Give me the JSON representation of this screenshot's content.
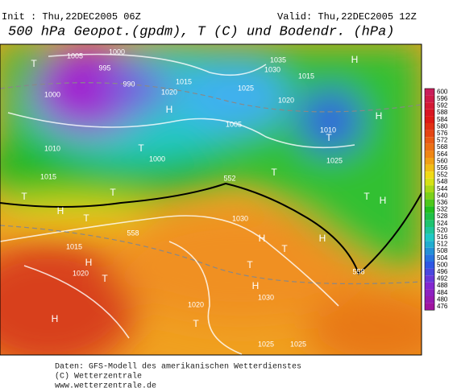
{
  "header": {
    "init": "Init : Thu,22DEC2005 06Z",
    "valid": "Valid: Thu,22DEC2005 12Z",
    "title": "500 hPa Geopot.(gpdm), T (C) und Bodendr. (hPa)"
  },
  "map_labels": [
    "T",
    "1005",
    "1000",
    "995",
    "990",
    "1000",
    "H",
    "1015",
    "1020",
    "1035",
    "1030",
    "1025",
    "1020",
    "1015",
    "H",
    "1010",
    "T",
    "1010",
    "T",
    "1000",
    "1005",
    "T",
    "1015",
    "T",
    "T",
    "H",
    "T",
    "H",
    "1025",
    "T",
    "H",
    "1030",
    "H",
    "T",
    "T",
    "H",
    "1020",
    "T",
    "H",
    "H",
    "T",
    "1025",
    "1025",
    "1015",
    "1020",
    "1030",
    "H",
    "558",
    "558",
    "552"
  ],
  "colorbar": {
    "values": [
      600,
      596,
      592,
      588,
      584,
      580,
      576,
      572,
      568,
      564,
      560,
      556,
      552,
      548,
      544,
      540,
      536,
      532,
      528,
      524,
      520,
      516,
      512,
      508,
      504,
      500,
      496,
      492,
      488,
      484,
      480,
      476
    ]
  },
  "footer": {
    "lines": [
      "Daten: GFS-Modell des amerikanischen Wetterdienstes",
      "(C) Wetterzentrale",
      "www.wetterzentrale.de"
    ]
  }
}
